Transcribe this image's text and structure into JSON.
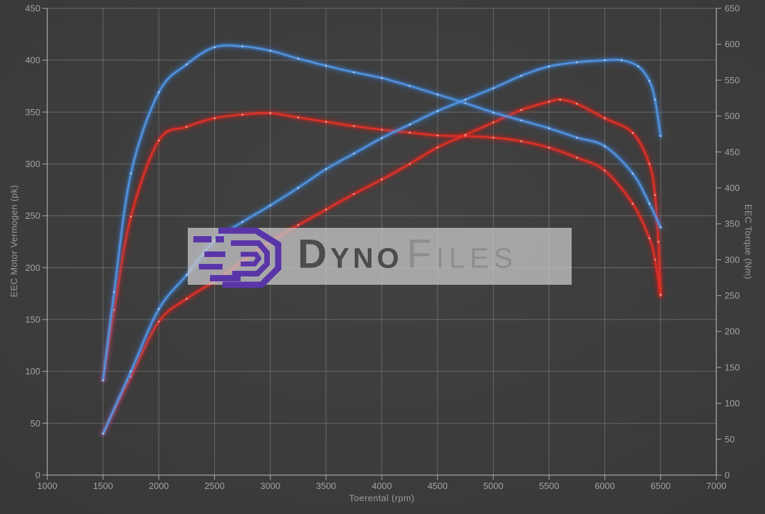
{
  "watermark": {
    "brand_part1": "Dyno",
    "brand_part2": "Files",
    "logo_color": "#5a35a8"
  },
  "chart_data": {
    "type": "line",
    "title": "",
    "legend": "none",
    "grid": true,
    "x_axis": {
      "label": "Toerental (rpm)",
      "min": 1000,
      "max": 7000,
      "tick_step": 500,
      "ticks": [
        1000,
        1500,
        2000,
        2500,
        3000,
        3500,
        4000,
        4500,
        5000,
        5500,
        6000,
        6500,
        7000
      ]
    },
    "y_left_axis": {
      "label": "EEC Motor Vermogen (pk)",
      "min": 0,
      "max": 450,
      "tick_step": 50,
      "ticks": [
        0,
        50,
        100,
        150,
        200,
        250,
        300,
        350,
        400,
        450
      ]
    },
    "y_right_axis": {
      "label": "EEC Torque (Nm)",
      "min": 0,
      "max": 650,
      "tick_step": 50,
      "ticks": [
        0,
        50,
        100,
        150,
        200,
        250,
        300,
        350,
        400,
        450,
        500,
        550,
        600,
        650
      ]
    },
    "series": [
      {
        "id": "torque-stock",
        "axis": "right",
        "unit": "Nm",
        "color": "#e23126",
        "glow": "#cf1414",
        "points": [
          [
            1500,
            132
          ],
          [
            1600,
            230
          ],
          [
            1750,
            360
          ],
          [
            2000,
            466
          ],
          [
            2250,
            485
          ],
          [
            2500,
            497
          ],
          [
            2750,
            502
          ],
          [
            3000,
            504
          ],
          [
            3250,
            498
          ],
          [
            3500,
            492
          ],
          [
            3750,
            486
          ],
          [
            4000,
            481
          ],
          [
            4250,
            477
          ],
          [
            4500,
            473
          ],
          [
            4750,
            472
          ],
          [
            5000,
            470
          ],
          [
            5250,
            465
          ],
          [
            5500,
            456
          ],
          [
            5750,
            442
          ],
          [
            6000,
            424
          ],
          [
            6250,
            378
          ],
          [
            6400,
            330
          ],
          [
            6450,
            300
          ],
          [
            6500,
            250
          ]
        ]
      },
      {
        "id": "power-stock",
        "axis": "left",
        "unit": "pk",
        "color": "#e23126",
        "glow": "#cf1414",
        "points": [
          [
            1500,
            40
          ],
          [
            1750,
            95
          ],
          [
            2000,
            148
          ],
          [
            2250,
            170
          ],
          [
            2500,
            187
          ],
          [
            2750,
            206
          ],
          [
            3000,
            225
          ],
          [
            3250,
            241
          ],
          [
            3500,
            256
          ],
          [
            3750,
            271
          ],
          [
            4000,
            285
          ],
          [
            4250,
            300
          ],
          [
            4500,
            316
          ],
          [
            4750,
            328
          ],
          [
            5000,
            340
          ],
          [
            5250,
            352
          ],
          [
            5500,
            360
          ],
          [
            5600,
            362
          ],
          [
            5750,
            358
          ],
          [
            6000,
            344
          ],
          [
            6250,
            330
          ],
          [
            6400,
            300
          ],
          [
            6450,
            270
          ],
          [
            6480,
            225
          ],
          [
            6500,
            174
          ]
        ]
      },
      {
        "id": "torque-tuned",
        "axis": "right",
        "unit": "Nm",
        "color": "#5296e6",
        "glow": "#2e77d0",
        "points": [
          [
            1500,
            132
          ],
          [
            1600,
            255
          ],
          [
            1750,
            420
          ],
          [
            2000,
            533
          ],
          [
            2250,
            572
          ],
          [
            2500,
            596
          ],
          [
            2750,
            597
          ],
          [
            3000,
            591
          ],
          [
            3250,
            580
          ],
          [
            3500,
            570
          ],
          [
            3750,
            561
          ],
          [
            4000,
            553
          ],
          [
            4250,
            542
          ],
          [
            4500,
            530
          ],
          [
            4750,
            518
          ],
          [
            5000,
            505
          ],
          [
            5250,
            494
          ],
          [
            5500,
            483
          ],
          [
            5750,
            470
          ],
          [
            6000,
            458
          ],
          [
            6250,
            420
          ],
          [
            6400,
            378
          ],
          [
            6500,
            345
          ]
        ]
      },
      {
        "id": "power-tuned",
        "axis": "left",
        "unit": "pk",
        "color": "#5296e6",
        "glow": "#2e77d0",
        "points": [
          [
            1500,
            40
          ],
          [
            1750,
            100
          ],
          [
            2000,
            160
          ],
          [
            2250,
            193
          ],
          [
            2500,
            226
          ],
          [
            2750,
            244
          ],
          [
            3000,
            260
          ],
          [
            3250,
            277
          ],
          [
            3500,
            295
          ],
          [
            3750,
            310
          ],
          [
            4000,
            325
          ],
          [
            4250,
            338
          ],
          [
            4500,
            351
          ],
          [
            4750,
            362
          ],
          [
            5000,
            373
          ],
          [
            5250,
            385
          ],
          [
            5500,
            394
          ],
          [
            5750,
            398
          ],
          [
            6000,
            400
          ],
          [
            6150,
            400
          ],
          [
            6300,
            394
          ],
          [
            6400,
            380
          ],
          [
            6450,
            362
          ],
          [
            6500,
            327
          ]
        ]
      }
    ]
  }
}
